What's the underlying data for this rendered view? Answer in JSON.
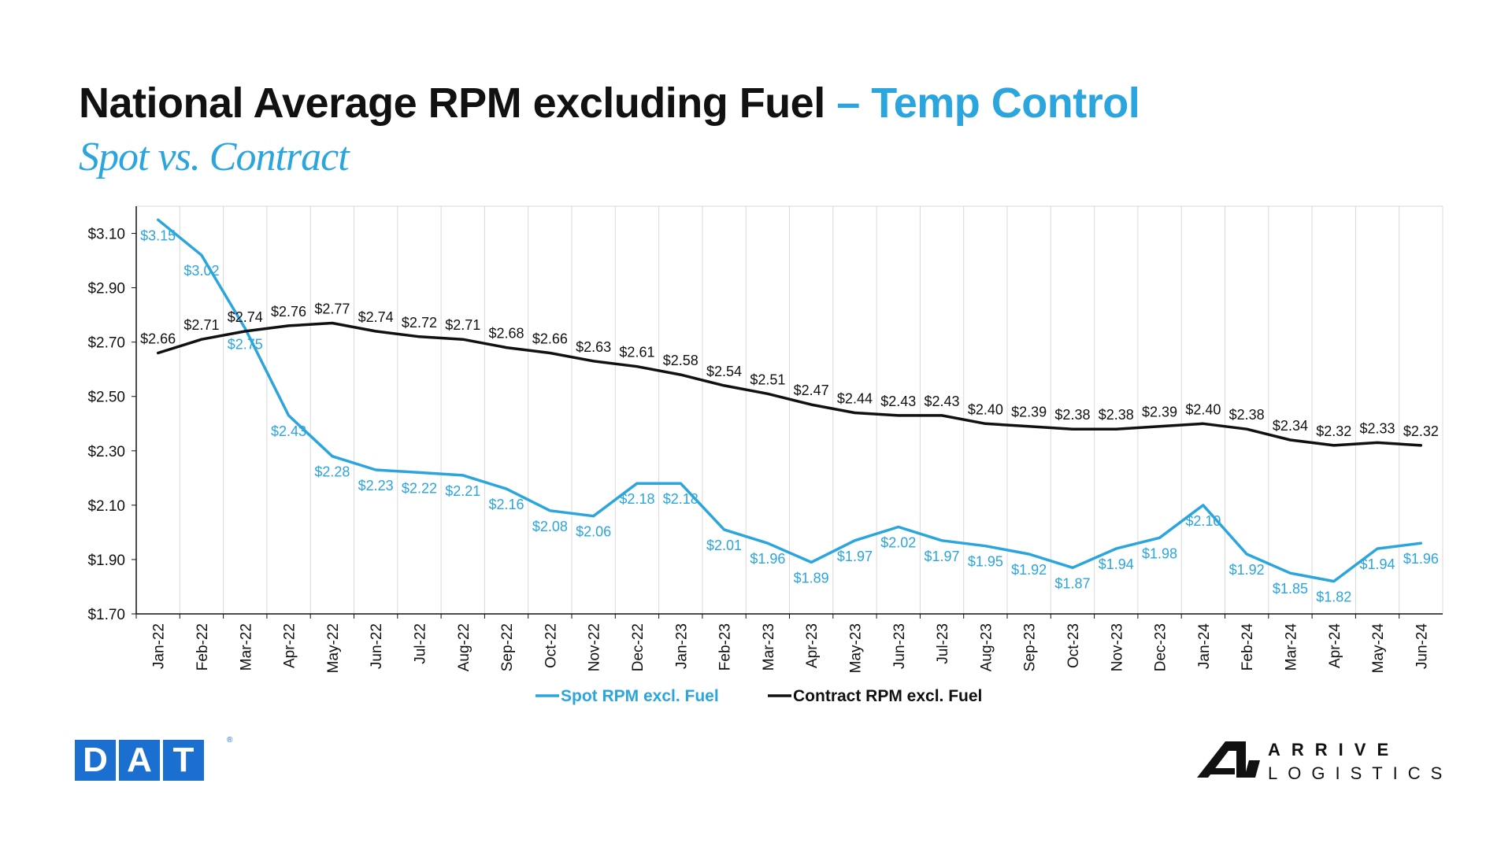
{
  "header": {
    "title_main": "National Average RPM excluding Fuel",
    "title_accent": "– Temp Control",
    "subtitle": "Spot vs. Contract"
  },
  "logos": {
    "dat": [
      "D",
      "A",
      "T"
    ],
    "dat_reg": "®",
    "arrive_line1": "ARRIVE",
    "arrive_line2": "LOGISTICS"
  },
  "colors": {
    "spot": "#2ba5dd",
    "contract": "#111111",
    "grid": "#d9d9d9",
    "dat_blue": "#1a6fd0"
  },
  "chart_data": {
    "type": "line",
    "title": "",
    "xlabel": "",
    "ylabel": "",
    "ylim": [
      1.7,
      3.2
    ],
    "yticks": [
      "$1.70",
      "$1.90",
      "$2.10",
      "$2.30",
      "$2.50",
      "$2.70",
      "$2.90",
      "$3.10"
    ],
    "ytick_values": [
      1.7,
      1.9,
      2.1,
      2.3,
      2.5,
      2.7,
      2.9,
      3.1
    ],
    "categories": [
      "Jan-22",
      "Feb-22",
      "Mar-22",
      "Apr-22",
      "May-22",
      "Jun-22",
      "Jul-22",
      "Aug-22",
      "Sep-22",
      "Oct-22",
      "Nov-22",
      "Dec-22",
      "Jan-23",
      "Feb-23",
      "Mar-23",
      "Apr-23",
      "May-23",
      "Jun-23",
      "Jul-23",
      "Aug-23",
      "Sep-23",
      "Oct-23",
      "Nov-23",
      "Dec-23",
      "Jan-24",
      "Feb-24",
      "Mar-24",
      "Apr-24",
      "May-24",
      "Jun-24"
    ],
    "grid": true,
    "legend_position": "bottom",
    "series": [
      {
        "name": "Spot RPM excl. Fuel",
        "values": [
          3.15,
          3.02,
          2.75,
          2.43,
          2.28,
          2.23,
          2.22,
          2.21,
          2.16,
          2.08,
          2.06,
          2.18,
          2.18,
          2.01,
          1.96,
          1.89,
          1.97,
          2.02,
          1.97,
          1.95,
          1.92,
          1.87,
          1.94,
          1.98,
          2.1,
          1.92,
          1.85,
          1.82,
          1.94,
          1.96
        ],
        "labels": [
          "$3.15",
          "$3.02",
          "$2.75",
          "$2.43",
          "$2.28",
          "$2.23",
          "$2.22",
          "$2.21",
          "$2.16",
          "$2.08",
          "$2.06",
          "$2.18",
          "$2.18",
          "$2.01",
          "$1.96",
          "$1.89",
          "$1.97",
          "$2.02",
          "$1.97",
          "$1.95",
          "$1.92",
          "$1.87",
          "$1.94",
          "$1.98",
          "$2.10",
          "$1.92",
          "$1.85",
          "$1.82",
          "$1.94",
          "$1.96"
        ]
      },
      {
        "name": "Contract RPM excl. Fuel",
        "values": [
          2.66,
          2.71,
          2.74,
          2.76,
          2.77,
          2.74,
          2.72,
          2.71,
          2.68,
          2.66,
          2.63,
          2.61,
          2.58,
          2.54,
          2.51,
          2.47,
          2.44,
          2.43,
          2.43,
          2.4,
          2.39,
          2.38,
          2.38,
          2.39,
          2.4,
          2.38,
          2.34,
          2.32,
          2.33,
          2.32
        ],
        "labels": [
          "$2.66",
          "$2.71",
          "$2.74",
          "$2.76",
          "$2.77",
          "$2.74",
          "$2.72",
          "$2.71",
          "$2.68",
          "$2.66",
          "$2.63",
          "$2.61",
          "$2.58",
          "$2.54",
          "$2.51",
          "$2.47",
          "$2.44",
          "$2.43",
          "$2.43",
          "$2.40",
          "$2.39",
          "$2.38",
          "$2.38",
          "$2.39",
          "$2.40",
          "$2.38",
          "$2.34",
          "$2.32",
          "$2.33",
          "$2.32"
        ]
      }
    ]
  }
}
